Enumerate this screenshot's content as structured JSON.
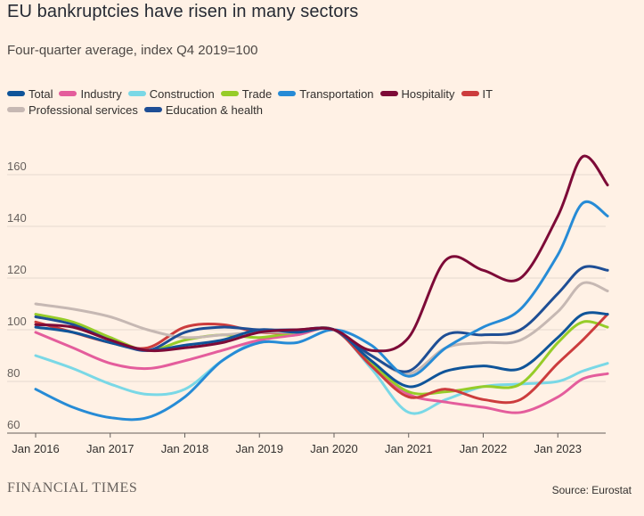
{
  "title": "EU bankruptcies have risen in many sectors",
  "subtitle": "Four-quarter average, index Q4 2019=100",
  "source": "Source: Eurostat",
  "brand": "FINANCIAL TIMES",
  "chart_data": {
    "type": "line",
    "title": "EU bankruptcies have risen in many sectors",
    "subtitle": "Four-quarter average, index Q4 2019=100",
    "xlabel": "",
    "ylabel": "",
    "x_tick_labels": [
      "Jan 2016",
      "Jan 2017",
      "Jan 2018",
      "Jan 2019",
      "Jan 2020",
      "Jan 2021",
      "Jan 2022",
      "Jan 2023"
    ],
    "x_range": [
      "2016-01",
      "2023-09"
    ],
    "y_ticks": [
      60,
      80,
      100,
      120,
      140,
      160
    ],
    "ylim": [
      60,
      170
    ],
    "grid": true,
    "legend_position": "top",
    "series": [
      {
        "name": "Total",
        "color": "#0f5499",
        "x": [
          "2016-01",
          "2016-07",
          "2017-01",
          "2017-07",
          "2018-01",
          "2018-07",
          "2019-01",
          "2019-07",
          "2020-01",
          "2020-07",
          "2021-01",
          "2021-07",
          "2022-01",
          "2022-07",
          "2023-01",
          "2023-05",
          "2023-09"
        ],
        "y": [
          101,
          99,
          95,
          92,
          94,
          96,
          100,
          99,
          100,
          88,
          78,
          84,
          86,
          85,
          97,
          106,
          106
        ]
      },
      {
        "name": "Industry",
        "color": "#e45d9c",
        "x": [
          "2016-01",
          "2016-07",
          "2017-01",
          "2017-07",
          "2018-01",
          "2018-07",
          "2019-01",
          "2019-07",
          "2020-01",
          "2020-07",
          "2021-01",
          "2021-07",
          "2022-01",
          "2022-07",
          "2023-01",
          "2023-05",
          "2023-09"
        ],
        "y": [
          99,
          93,
          87,
          85,
          88,
          92,
          96,
          98,
          100,
          86,
          75,
          72,
          70,
          68,
          74,
          81,
          83
        ]
      },
      {
        "name": "Construction",
        "color": "#7ad8e6",
        "x": [
          "2016-01",
          "2016-07",
          "2017-01",
          "2017-07",
          "2018-01",
          "2018-07",
          "2019-01",
          "2019-07",
          "2020-01",
          "2020-07",
          "2021-01",
          "2021-07",
          "2022-01",
          "2022-07",
          "2023-01",
          "2023-05",
          "2023-09"
        ],
        "y": [
          90,
          85,
          79,
          75,
          77,
          88,
          96,
          98,
          100,
          85,
          68,
          73,
          78,
          79,
          80,
          84,
          87
        ]
      },
      {
        "name": "Trade",
        "color": "#96cc28",
        "x": [
          "2016-01",
          "2016-07",
          "2017-01",
          "2017-07",
          "2018-01",
          "2018-07",
          "2019-01",
          "2019-07",
          "2020-01",
          "2020-07",
          "2021-01",
          "2021-07",
          "2022-01",
          "2022-07",
          "2023-01",
          "2023-05",
          "2023-09"
        ],
        "y": [
          106,
          103,
          97,
          92,
          96,
          98,
          97,
          99,
          100,
          87,
          76,
          76,
          78,
          79,
          95,
          103,
          101
        ]
      },
      {
        "name": "Transportation",
        "color": "#268bd6",
        "x": [
          "2016-01",
          "2016-07",
          "2017-01",
          "2017-07",
          "2018-01",
          "2018-07",
          "2019-01",
          "2019-07",
          "2020-01",
          "2020-07",
          "2021-01",
          "2021-07",
          "2022-01",
          "2022-07",
          "2023-01",
          "2023-05",
          "2023-09"
        ],
        "y": [
          77,
          70,
          66,
          66,
          74,
          88,
          95,
          95,
          100,
          94,
          82,
          93,
          101,
          108,
          129,
          149,
          144
        ]
      },
      {
        "name": "Hospitality",
        "color": "#7d0a37",
        "x": [
          "2016-01",
          "2016-07",
          "2017-01",
          "2017-07",
          "2018-01",
          "2018-07",
          "2019-01",
          "2019-07",
          "2020-01",
          "2020-07",
          "2021-01",
          "2021-07",
          "2022-01",
          "2022-07",
          "2023-01",
          "2023-05",
          "2023-09"
        ],
        "y": [
          102,
          101,
          96,
          92,
          93,
          95,
          99,
          100,
          100,
          92,
          97,
          127,
          123,
          120,
          144,
          167,
          156
        ]
      },
      {
        "name": "IT",
        "color": "#cc3c3d",
        "x": [
          "2016-01",
          "2016-07",
          "2017-01",
          "2017-07",
          "2018-01",
          "2018-07",
          "2019-01",
          "2019-07",
          "2020-01",
          "2020-07",
          "2021-01",
          "2021-07",
          "2022-01",
          "2022-07",
          "2023-01",
          "2023-05",
          "2023-09"
        ],
        "y": [
          103,
          99,
          95,
          93,
          101,
          102,
          99,
          99,
          100,
          86,
          74,
          77,
          73,
          73,
          87,
          96,
          106
        ]
      },
      {
        "name": "Professional services",
        "color": "#c6b8b3",
        "x": [
          "2016-01",
          "2016-07",
          "2017-01",
          "2017-07",
          "2018-01",
          "2018-07",
          "2019-01",
          "2019-07",
          "2020-01",
          "2020-07",
          "2021-01",
          "2021-07",
          "2022-01",
          "2022-07",
          "2023-01",
          "2023-05",
          "2023-09"
        ],
        "y": [
          110,
          108,
          105,
          100,
          97,
          98,
          99,
          99,
          100,
          90,
          83,
          93,
          95,
          96,
          107,
          118,
          115
        ]
      },
      {
        "name": "Education & health",
        "color": "#1e4e95",
        "x": [
          "2016-01",
          "2016-07",
          "2017-01",
          "2017-07",
          "2018-01",
          "2018-07",
          "2019-01",
          "2019-07",
          "2020-01",
          "2020-07",
          "2021-01",
          "2021-07",
          "2022-01",
          "2022-07",
          "2023-01",
          "2023-05",
          "2023-09"
        ],
        "y": [
          105,
          102,
          96,
          92,
          99,
          101,
          100,
          100,
          100,
          90,
          84,
          98,
          98,
          100,
          114,
          124,
          123
        ]
      }
    ]
  }
}
